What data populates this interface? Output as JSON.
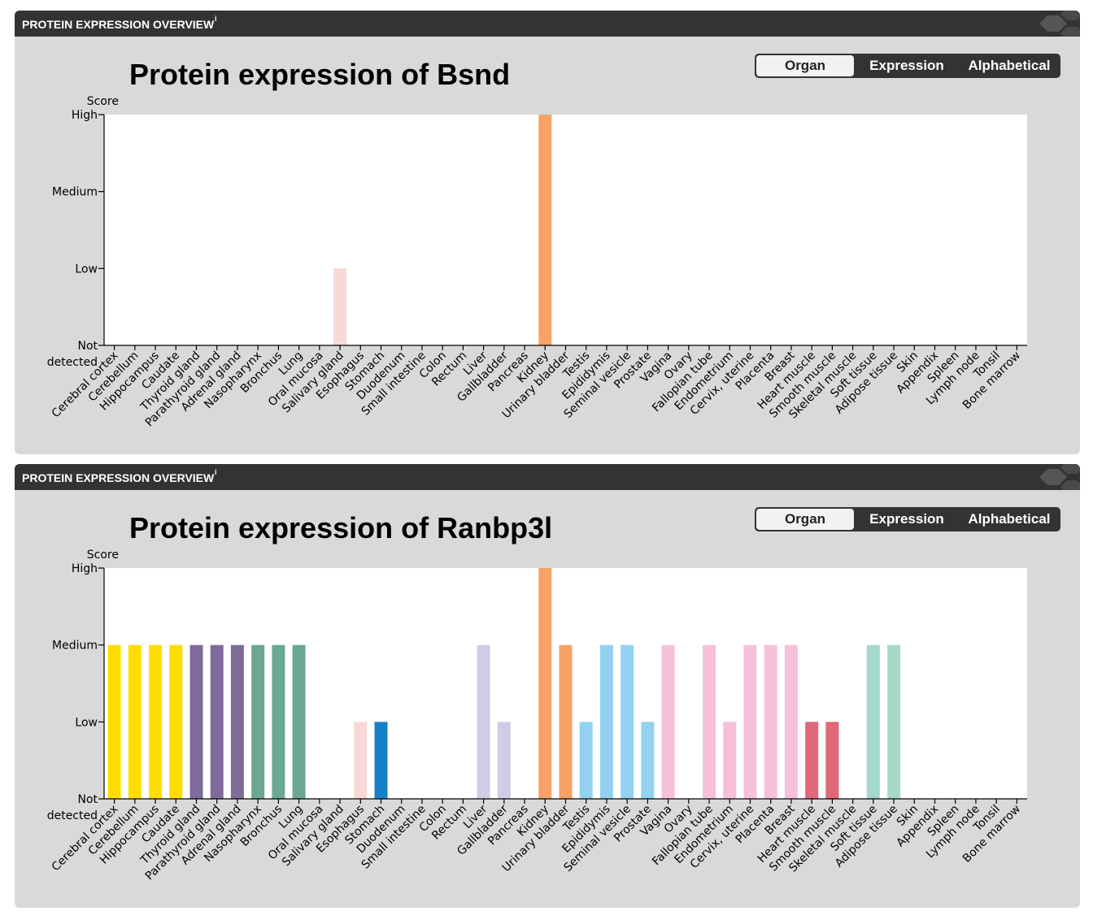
{
  "panels": [
    {
      "header": {
        "title": "PROTEIN EXPRESSION OVERVIEW",
        "info_icon": "i"
      },
      "sort": {
        "options": [
          "Organ",
          "Expression",
          "Alphabetical"
        ],
        "active": "Organ"
      },
      "chart_data": {
        "type": "bar",
        "title": "Protein expression of Bsnd",
        "ylabel": "Score",
        "y_ticks": [
          "Not detected",
          "Low",
          "Medium",
          "High"
        ],
        "ylim": [
          0,
          3
        ],
        "grid": false,
        "legend": "none",
        "categories": [
          "Cerebral cortex",
          "Cerebellum",
          "Hippocampus",
          "Caudate",
          "Thyroid gland",
          "Parathyroid gland",
          "Adrenal gland",
          "Nasopharynx",
          "Bronchus",
          "Lung",
          "Oral mucosa",
          "Salivary gland",
          "Esophagus",
          "Stomach",
          "Duodenum",
          "Small intestine",
          "Colon",
          "Rectum",
          "Liver",
          "Gallbladder",
          "Pancreas",
          "Kidney",
          "Urinary bladder",
          "Testis",
          "Epididymis",
          "Seminal vesicle",
          "Prostate",
          "Vagina",
          "Ovary",
          "Fallopian tube",
          "Endometrium",
          "Cervix, uterine",
          "Placenta",
          "Breast",
          "Heart muscle",
          "Smooth muscle",
          "Skeletal muscle",
          "Soft tissue",
          "Adipose tissue",
          "Skin",
          "Appendix",
          "Spleen",
          "Lymph node",
          "Tonsil",
          "Bone marrow"
        ],
        "values": [
          0,
          0,
          0,
          0,
          0,
          0,
          0,
          0,
          0,
          0,
          0,
          1,
          0,
          0,
          0,
          0,
          0,
          0,
          0,
          0,
          0,
          3,
          0,
          0,
          0,
          0,
          0,
          0,
          0,
          0,
          0,
          0,
          0,
          0,
          0,
          0,
          0,
          0,
          0,
          0,
          0,
          0,
          0,
          0,
          0
        ],
        "colors": [
          "#ffdd00",
          "#ffdd00",
          "#ffdd00",
          "#ffdd00",
          "#7e6b9a",
          "#7e6b9a",
          "#7e6b9a",
          "#6aa891",
          "#6aa891",
          "#6aa891",
          "#f9d8d8",
          "#f9d8d8",
          "#f9d8d8",
          "#1780c4",
          "#d0cce6",
          "#d0cce6",
          "#d0cce6",
          "#d0cce6",
          "#d0cce6",
          "#d0cce6",
          "#d0cce6",
          "#f7a366",
          "#f7a366",
          "#92d1f0",
          "#92d1f0",
          "#92d1f0",
          "#92d1f0",
          "#f6c0d8",
          "#f6c0d8",
          "#f6c0d8",
          "#f6c0d8",
          "#f6c0d8",
          "#f6c0d8",
          "#f6c0d8",
          "#e06878",
          "#e06878",
          "#e06878",
          "#a6d9cc",
          "#a6d9cc",
          "#f9d8d8",
          "#f9d8d8",
          "#f9d8d8",
          "#f9d8d8",
          "#f9d8d8",
          "#f9d8d8"
        ]
      }
    },
    {
      "header": {
        "title": "PROTEIN EXPRESSION OVERVIEW",
        "info_icon": "i"
      },
      "sort": {
        "options": [
          "Organ",
          "Expression",
          "Alphabetical"
        ],
        "active": "Organ"
      },
      "chart_data": {
        "type": "bar",
        "title": "Protein expression of Ranbp3l",
        "ylabel": "Score",
        "y_ticks": [
          "Not detected",
          "Low",
          "Medium",
          "High"
        ],
        "ylim": [
          0,
          3
        ],
        "grid": false,
        "legend": "none",
        "categories": [
          "Cerebral cortex",
          "Cerebellum",
          "Hippocampus",
          "Caudate",
          "Thyroid gland",
          "Parathyroid gland",
          "Adrenal gland",
          "Nasopharynx",
          "Bronchus",
          "Lung",
          "Oral mucosa",
          "Salivary gland",
          "Esophagus",
          "Stomach",
          "Duodenum",
          "Small intestine",
          "Colon",
          "Rectum",
          "Liver",
          "Gallbladder",
          "Pancreas",
          "Kidney",
          "Urinary bladder",
          "Testis",
          "Epididymis",
          "Seminal vesicle",
          "Prostate",
          "Vagina",
          "Ovary",
          "Fallopian tube",
          "Endometrium",
          "Cervix, uterine",
          "Placenta",
          "Breast",
          "Heart muscle",
          "Smooth muscle",
          "Skeletal muscle",
          "Soft tissue",
          "Adipose tissue",
          "Skin",
          "Appendix",
          "Spleen",
          "Lymph node",
          "Tonsil",
          "Bone marrow"
        ],
        "values": [
          2,
          2,
          2,
          2,
          2,
          2,
          2,
          2,
          2,
          2,
          0,
          0,
          1,
          1,
          0,
          0,
          0,
          0,
          2,
          1,
          0,
          3,
          2,
          1,
          2,
          2,
          1,
          2,
          0,
          2,
          1,
          2,
          2,
          2,
          1,
          1,
          0,
          2,
          2,
          0,
          0,
          0,
          0,
          0,
          0
        ],
        "colors": [
          "#ffdd00",
          "#ffdd00",
          "#ffdd00",
          "#ffdd00",
          "#7e6b9a",
          "#7e6b9a",
          "#7e6b9a",
          "#6aa891",
          "#6aa891",
          "#6aa891",
          "#f9d8d8",
          "#f9d8d8",
          "#f9d8d8",
          "#1780c4",
          "#d0cce6",
          "#d0cce6",
          "#d0cce6",
          "#d0cce6",
          "#d0cce6",
          "#d0cce6",
          "#d0cce6",
          "#f7a366",
          "#f7a366",
          "#92d1f0",
          "#92d1f0",
          "#92d1f0",
          "#92d1f0",
          "#f6c0d8",
          "#f6c0d8",
          "#f6c0d8",
          "#f6c0d8",
          "#f6c0d8",
          "#f6c0d8",
          "#f6c0d8",
          "#e06878",
          "#e06878",
          "#e06878",
          "#a6d9cc",
          "#a6d9cc",
          "#f9d8d8",
          "#f9d8d8",
          "#f9d8d8",
          "#f9d8d8",
          "#f9d8d8",
          "#f9d8d8"
        ]
      }
    }
  ]
}
